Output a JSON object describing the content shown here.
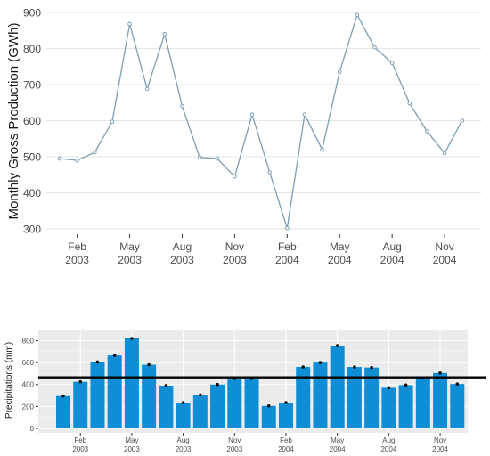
{
  "chart_data": [
    {
      "type": "line",
      "title": "",
      "xlabel": "",
      "ylabel": "Monthly Gross Production (GWh)",
      "x": [
        "Jan 2003",
        "Feb 2003",
        "Mar 2003",
        "Apr 2003",
        "May 2003",
        "Jun 2003",
        "Jul 2003",
        "Aug 2003",
        "Sep 2003",
        "Oct 2003",
        "Nov 2003",
        "Dec 2003",
        "Jan 2004",
        "Feb 2004",
        "Mar 2004",
        "Apr 2004",
        "May 2004",
        "Jun 2004",
        "Jul 2004",
        "Aug 2004",
        "Sep 2004",
        "Oct 2004",
        "Nov 2004",
        "Dec 2004"
      ],
      "series": [
        {
          "values": [
            495,
            490,
            512,
            597,
            868,
            688,
            840,
            640,
            498,
            495,
            445,
            617,
            457,
            302,
            617,
            520,
            735,
            893,
            803,
            760,
            648,
            570,
            510,
            600
          ]
        }
      ],
      "ylim": [
        285,
        905
      ],
      "yticks": [
        300,
        400,
        500,
        600,
        700,
        800,
        900
      ],
      "xtick_index": [
        1,
        4,
        7,
        10,
        13,
        16,
        19,
        22
      ],
      "xtick_line1": [
        "Feb",
        "May",
        "Aug",
        "Nov",
        "Feb",
        "May",
        "Aug",
        "Nov"
      ],
      "xtick_line2": [
        "2003",
        "2003",
        "2003",
        "2003",
        "2004",
        "2004",
        "2004",
        "2004"
      ],
      "grid": true,
      "colors": {
        "line": "#7f9db4",
        "point": "#7f9db4",
        "grid": "#e6e6e6"
      }
    },
    {
      "type": "bar",
      "title": "",
      "xlabel": "",
      "ylabel": "Precipitations (mm)",
      "categories": [
        "Jan 2003",
        "Feb 2003",
        "Mar 2003",
        "Apr 2003",
        "May 2003",
        "Jun 2003",
        "Jul 2003",
        "Aug 2003",
        "Sep 2003",
        "Oct 2003",
        "Nov 2003",
        "Dec 2003",
        "Jan 2004",
        "Feb 2004",
        "Mar 2004",
        "Apr 2004",
        "May 2004",
        "Jun 2004",
        "Jul 2004",
        "Aug 2004",
        "Sep 2004",
        "Oct 2004",
        "Nov 2004",
        "Dec 2004"
      ],
      "values": [
        295,
        425,
        605,
        665,
        820,
        580,
        390,
        235,
        305,
        400,
        455,
        455,
        205,
        235,
        560,
        600,
        755,
        560,
        555,
        370,
        395,
        460,
        505,
        405
      ],
      "reference_line": 465,
      "ylim": [
        -10,
        870
      ],
      "yticks": [
        0,
        200,
        400,
        600,
        800
      ],
      "xtick_index": [
        1,
        4,
        7,
        10,
        13,
        16,
        19,
        22
      ],
      "xtick_line1": [
        "Feb",
        "May",
        "Aug",
        "Nov",
        "Feb",
        "May",
        "Aug",
        "Nov"
      ],
      "xtick_line2": [
        "2003",
        "2003",
        "2003",
        "2003",
        "2004",
        "2004",
        "2004",
        "2004"
      ],
      "grid": true,
      "colors": {
        "bar": "#0f8ed6",
        "panel": "#ebebeb",
        "grid_major": "#ffffff",
        "point": "#111111",
        "reference": "#000000"
      }
    }
  ]
}
